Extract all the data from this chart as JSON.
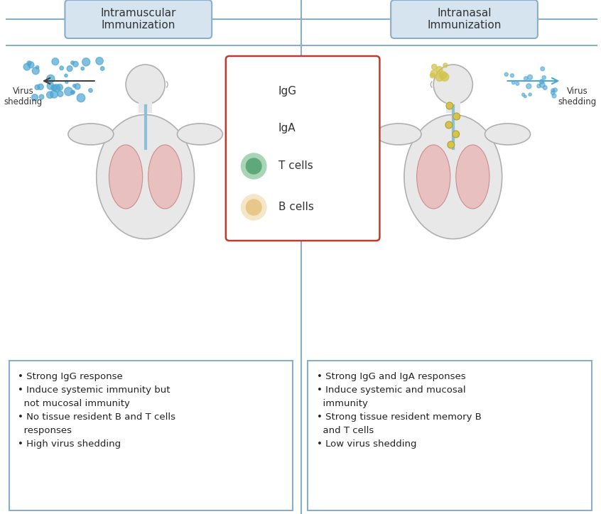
{
  "title_left": "Intramuscular\nImmunization",
  "title_right": "Intranasal\nImmunization",
  "title_box_color": "#d6e4f0",
  "title_box_edge": "#8aaec8",
  "divider_color": "#8aaec8",
  "legend_border_color": "#c0392b",
  "legend_items": [
    "IgG",
    "IgA",
    "T cells",
    "B cells"
  ],
  "tcell_color_outer": "#a8d5b5",
  "tcell_color_inner": "#5fa87a",
  "bcell_color_outer": "#f5e6c8",
  "bcell_color_inner": "#e8c88a",
  "igg_color": "#404040",
  "iga_color": "#c8860a",
  "virus_dot_color": "#4da6d4",
  "virus_dot_right_color": "#d4c44d",
  "lymph_node_color": "#d4c44d",
  "lung_color": "#e8b0b0",
  "lung_edge_color": "#c07070",
  "body_color": "#e8e8e8",
  "body_edge_color": "#b0b0b0",
  "text_left": "• Strong IgG response\n• Induce systemic immunity but\n  not mucosal immunity\n• No tissue resident B and T cells\n  responses\n• High virus shedding",
  "text_right": "• Strong IgG and IgA responses\n• Induce systemic and mucosal\n  immunity\n• Strong tissue resident memory B\n  and T cells\n• Low virus shedding",
  "virus_shedding_text": "Virus\nshedding",
  "arrow_color": "#404040",
  "background": "#ffffff"
}
